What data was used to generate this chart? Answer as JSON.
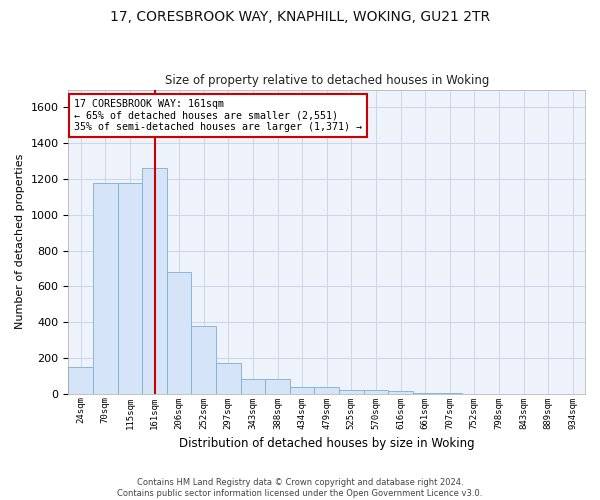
{
  "title_line1": "17, CORESBROOK WAY, KNAPHILL, WOKING, GU21 2TR",
  "title_line2": "Size of property relative to detached houses in Woking",
  "xlabel": "Distribution of detached houses by size in Woking",
  "ylabel": "Number of detached properties",
  "footer_line1": "Contains HM Land Registry data © Crown copyright and database right 2024.",
  "footer_line2": "Contains public sector information licensed under the Open Government Licence v3.0.",
  "annotation_line1": "17 CORESBROOK WAY: 161sqm",
  "annotation_line2": "← 65% of detached houses are smaller (2,551)",
  "annotation_line3": "35% of semi-detached houses are larger (1,371) →",
  "vline_x": 3,
  "bar_color": "#d6e4f7",
  "bar_edge_color": "#7bafd4",
  "vline_color": "#cc0000",
  "annotation_box_edge_color": "#cc0000",
  "grid_color": "#c8d0e0",
  "background_color": "#eef2fa",
  "categories": [
    "24sqm",
    "70sqm",
    "115sqm",
    "161sqm",
    "206sqm",
    "252sqm",
    "297sqm",
    "343sqm",
    "388sqm",
    "434sqm",
    "479sqm",
    "525sqm",
    "570sqm",
    "616sqm",
    "661sqm",
    "707sqm",
    "752sqm",
    "798sqm",
    "843sqm",
    "889sqm",
    "934sqm"
  ],
  "values": [
    150,
    1175,
    1175,
    1260,
    680,
    380,
    170,
    80,
    80,
    35,
    35,
    20,
    20,
    12,
    5,
    5,
    0,
    0,
    0,
    0,
    0
  ],
  "ylim": [
    0,
    1700
  ],
  "yticks": [
    0,
    200,
    400,
    600,
    800,
    1000,
    1200,
    1400,
    1600
  ]
}
